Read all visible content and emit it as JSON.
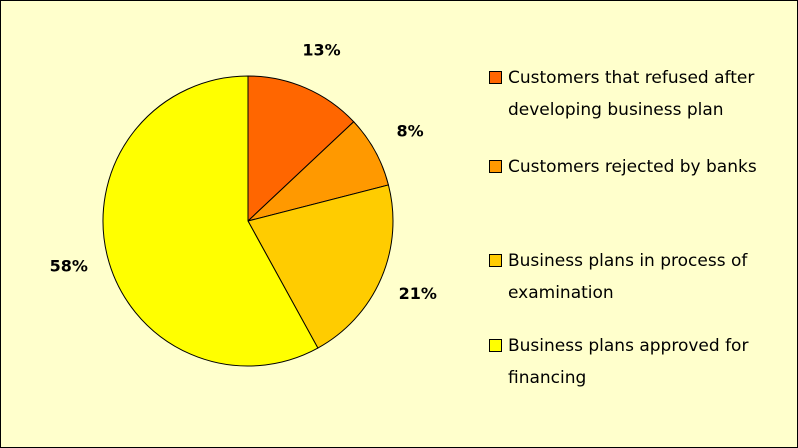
{
  "chart_data": {
    "type": "pie",
    "categories": [
      "Customers that refused after developing business plan",
      "Customers rejected by banks",
      "Business plans in process of examination",
      "Business plans approved for financing"
    ],
    "values": [
      13,
      8,
      21,
      58
    ],
    "value_labels": [
      "13%",
      "8%",
      "21%",
      "58%"
    ],
    "colors": [
      "#FF6600",
      "#FF9900",
      "#FFCC00",
      "#FFFF00"
    ],
    "legend": "right"
  }
}
